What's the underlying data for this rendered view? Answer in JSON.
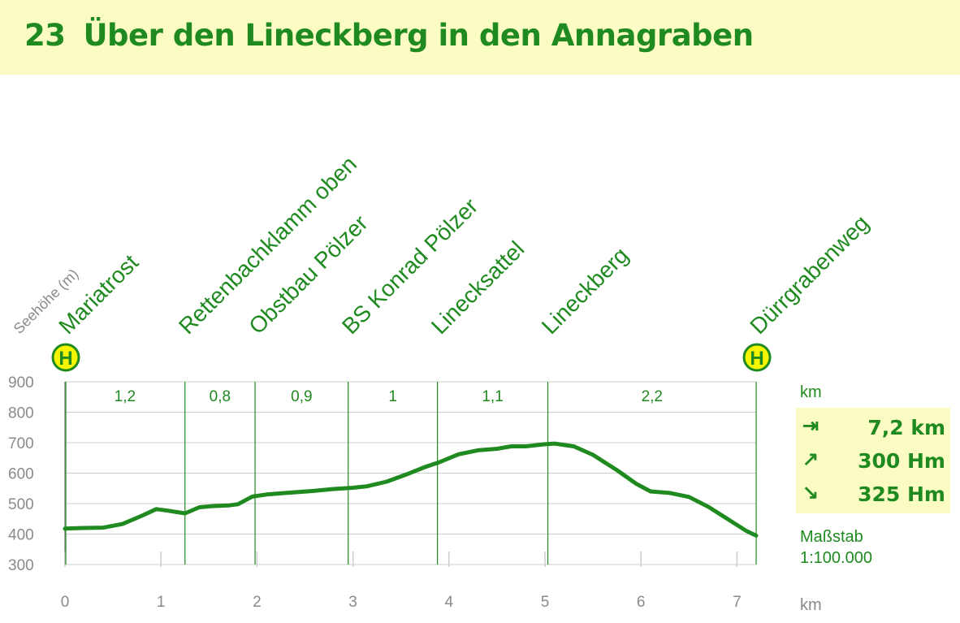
{
  "header": {
    "route_number": "23",
    "route_title": "Über den Lineckberg in den Annagraben"
  },
  "chart_data": {
    "type": "area",
    "title": "Über den Lineckberg in den Annagraben",
    "ylabel": "Seehöhe (m)",
    "xlabel": "km",
    "ylim": [
      300,
      900
    ],
    "xlim": [
      0,
      7.2
    ],
    "y_ticks": [
      "300",
      "400",
      "500",
      "600",
      "700",
      "800",
      "900"
    ],
    "x_ticks": [
      "0",
      "1",
      "2",
      "3",
      "4",
      "5",
      "6",
      "7"
    ],
    "series": [
      {
        "x": [
          0,
          0.2,
          0.4,
          0.6,
          0.8,
          0.95,
          1.05,
          1.25,
          1.4,
          1.55,
          1.7,
          1.8,
          1.95,
          2.1,
          2.3,
          2.6,
          2.8,
          3.0,
          3.15,
          3.35,
          3.55,
          3.75,
          3.9,
          4.1,
          4.3,
          4.5,
          4.65,
          4.8,
          5.0,
          5.1,
          5.3,
          5.5,
          5.75,
          5.95,
          6.1,
          6.3,
          6.5,
          6.7,
          6.9,
          7.1,
          7.2
        ],
        "elevation": [
          418,
          420,
          421,
          433,
          460,
          482,
          478,
          468,
          488,
          492,
          494,
          498,
          523,
          530,
          535,
          542,
          548,
          552,
          557,
          572,
          595,
          620,
          636,
          662,
          675,
          680,
          688,
          688,
          695,
          697,
          688,
          660,
          610,
          565,
          540,
          535,
          522,
          490,
          450,
          410,
          395
        ]
      }
    ],
    "waypoints": [
      {
        "name": "Mariatrost",
        "km": 0,
        "bus_stop": true
      },
      {
        "name": "Rettenbachklamm oben",
        "km": 1.25
      },
      {
        "name": "Obstbau Pölzer",
        "km": 1.98
      },
      {
        "name": "BS Konrad Pölzer",
        "km": 2.95
      },
      {
        "name": "Linecksattel",
        "km": 3.88
      },
      {
        "name": "Lineckberg",
        "km": 5.03
      },
      {
        "name": "Dürrgrabenweg",
        "km": 7.2,
        "bus_stop": true
      }
    ],
    "segments": [
      "1,2",
      "0,8",
      "0,9",
      "1",
      "1,1",
      "2,2"
    ],
    "bus_stop_glyph": "H",
    "colors": {
      "line": "#1f8a1f",
      "grid": "#cccccc",
      "axis": "#8a8a8a",
      "text": "#1f8a1f",
      "bus_fill": "#f5f500"
    }
  },
  "sidebar": {
    "km_label": "km",
    "distance": "7,2 km",
    "ascent": "300 Hm",
    "descent": "325 Hm",
    "distance_icon": "distance-arrow-icon",
    "ascent_icon": "ascent-arrow-icon",
    "descent_icon": "descent-arrow-icon",
    "scale_label": "Maßstab",
    "scale_value": "1:100.000",
    "x_unit": "km"
  }
}
